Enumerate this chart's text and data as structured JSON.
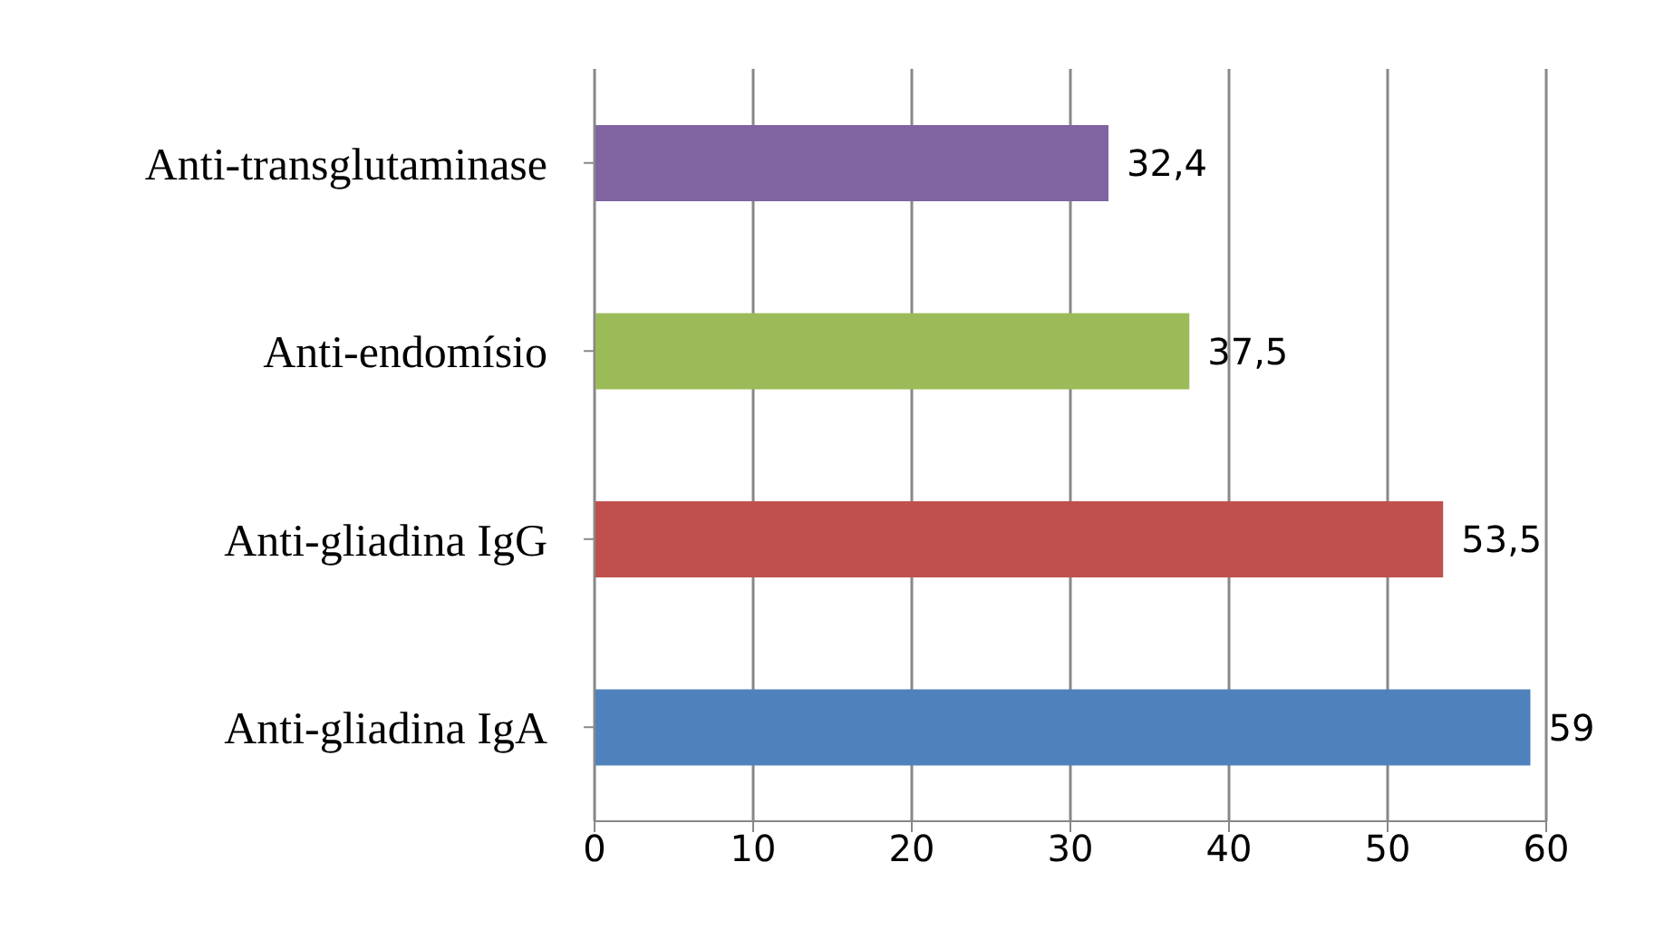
{
  "chart_data": {
    "type": "bar",
    "orientation": "horizontal",
    "categories": [
      "Anti-transglutaminase",
      "Anti-endomísio",
      "Anti-gliadina IgG",
      "Anti-gliadina IgA"
    ],
    "values": [
      32.4,
      37.5,
      53.5,
      59
    ],
    "colors": [
      "#8064a2",
      "#9bbb59",
      "#c0504d",
      "#4f81bd"
    ],
    "value_labels": [
      "32,4",
      "37,5",
      "53,5",
      "59"
    ],
    "xlim": [
      0,
      60
    ],
    "xticks": [
      0,
      10,
      20,
      30,
      40,
      50,
      60
    ],
    "grid": "x"
  }
}
